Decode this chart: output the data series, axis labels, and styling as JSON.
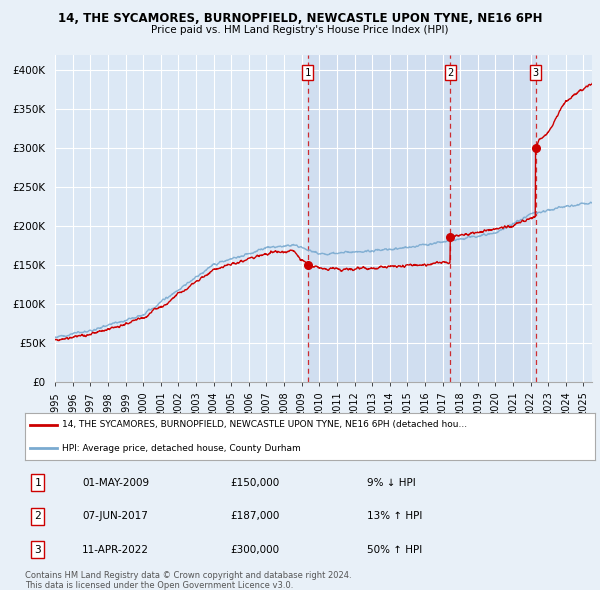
{
  "title1": "14, THE SYCAMORES, BURNOPFIELD, NEWCASTLE UPON TYNE, NE16 6PH",
  "title2": "Price paid vs. HM Land Registry's House Price Index (HPI)",
  "bg_color": "#e8f0f8",
  "plot_bg": "#dce8f5",
  "shaded_bg": "#c8d8ee",
  "transactions": [
    {
      "date": 2009.33,
      "price": 150000,
      "label": "1"
    },
    {
      "date": 2017.44,
      "price": 187000,
      "label": "2"
    },
    {
      "date": 2022.28,
      "price": 300000,
      "label": "3"
    }
  ],
  "legend_line1": "14, THE SYCAMORES, BURNOPFIELD, NEWCASTLE UPON TYNE, NE16 6PH (detached hou...",
  "legend_line2": "HPI: Average price, detached house, County Durham",
  "table_rows": [
    [
      "1",
      "01-MAY-2009",
      "£150,000",
      "9% ↓ HPI"
    ],
    [
      "2",
      "07-JUN-2017",
      "£187,000",
      "13% ↑ HPI"
    ],
    [
      "3",
      "11-APR-2022",
      "£300,000",
      "50% ↑ HPI"
    ]
  ],
  "footer1": "Contains HM Land Registry data © Crown copyright and database right 2024.",
  "footer2": "This data is licensed under the Open Government Licence v3.0.",
  "ylim": [
    0,
    420000
  ],
  "yticks": [
    0,
    50000,
    100000,
    150000,
    200000,
    250000,
    300000,
    350000,
    400000
  ],
  "ytick_labels": [
    "£0",
    "£50K",
    "£100K",
    "£150K",
    "£200K",
    "£250K",
    "£300K",
    "£350K",
    "£400K"
  ],
  "xmin": 1995.0,
  "xmax": 2025.5,
  "xticks": [
    1995,
    1996,
    1997,
    1998,
    1999,
    2000,
    2001,
    2002,
    2003,
    2004,
    2005,
    2006,
    2007,
    2008,
    2009,
    2010,
    2011,
    2012,
    2013,
    2014,
    2015,
    2016,
    2017,
    2018,
    2019,
    2020,
    2021,
    2022,
    2023,
    2024,
    2025
  ],
  "red_color": "#cc0000",
  "blue_color": "#7aaad0",
  "dashed_color": "#cc0000"
}
